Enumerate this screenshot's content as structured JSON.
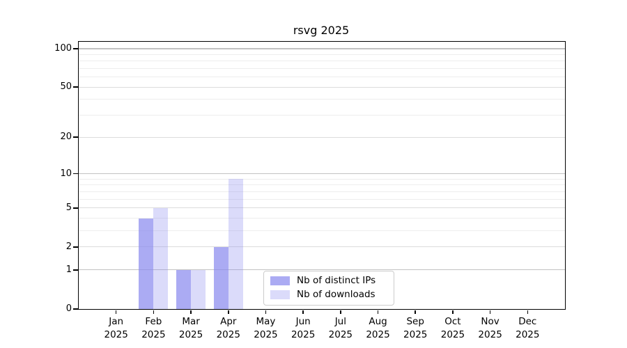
{
  "chart_data": {
    "type": "bar",
    "title": "rsvg 2025",
    "categories": [
      "Jan",
      "Feb",
      "Mar",
      "Apr",
      "May",
      "Jun",
      "Jul",
      "Aug",
      "Sep",
      "Oct",
      "Nov",
      "Dec"
    ],
    "x_year_suffix": "2025",
    "series": [
      {
        "name": "Nb of distinct IPs",
        "color": "rgba(136,136,238,0.7)",
        "values": [
          0,
          4,
          1,
          2,
          0,
          0,
          0,
          0,
          0,
          0,
          0,
          0
        ]
      },
      {
        "name": "Nb of downloads",
        "color": "rgba(136,136,238,0.3)",
        "values": [
          0,
          5,
          1,
          9,
          0,
          0,
          0,
          0,
          0,
          0,
          0,
          0
        ]
      }
    ],
    "y_axis": {
      "scale": "log1p",
      "tick_values": [
        0,
        1,
        2,
        5,
        10,
        20,
        50,
        100
      ],
      "tick_labels": [
        "0",
        "1",
        "2",
        "5",
        "10",
        "20",
        "50",
        "100"
      ],
      "decade_values": [
        1,
        10,
        100
      ],
      "minor_tick_values": [
        3,
        4,
        6,
        7,
        8,
        9,
        30,
        40,
        60,
        70,
        80,
        90
      ],
      "ylim": [
        0,
        113
      ]
    },
    "grid": {
      "enabled": true,
      "decade_color": "#c2c2c2",
      "major_color": "#dcdcdc",
      "minor_color": "#ededed"
    },
    "legend": {
      "position": "lower center",
      "border_color": "#cccccc"
    },
    "bar_color_base": "#8888ee"
  }
}
